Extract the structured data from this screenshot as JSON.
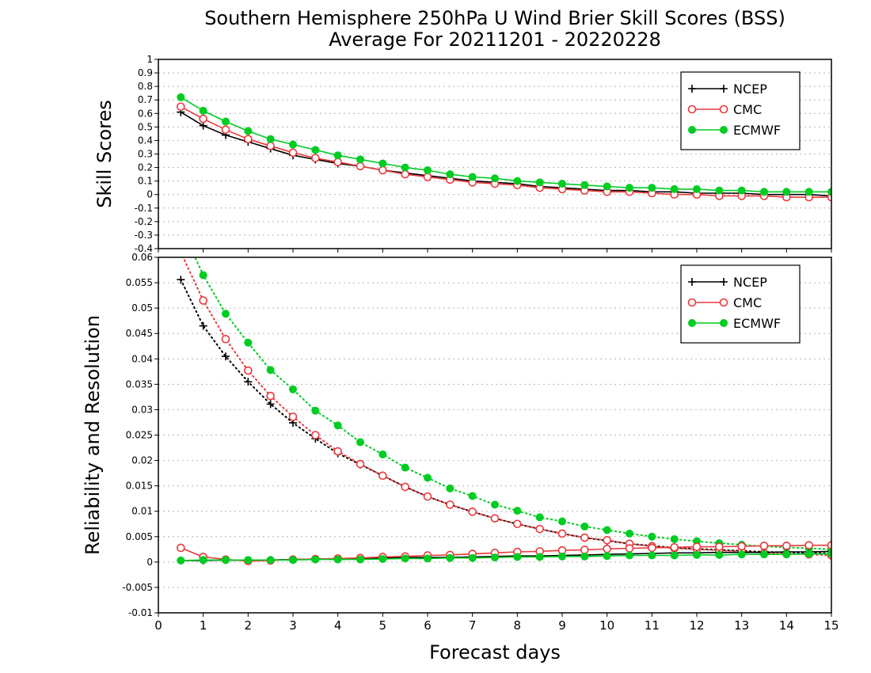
{
  "title_line1": "Southern Hemisphere 250hPa U Wind Brier Skill Scores (BSS)",
  "title_line2": "Average For 20211201 - 20220228",
  "xlabel": "Forecast days",
  "colors": {
    "NCEP": "#000000",
    "CMC": "#e8393c",
    "ECMWF": "#00cc22"
  },
  "chart_data": [
    {
      "type": "line",
      "panel": "top",
      "ylabel": "Skill Scores",
      "xlim": [
        0,
        15
      ],
      "ylim": [
        -0.4,
        1
      ],
      "xticks": [
        "0",
        "1",
        "2",
        "3",
        "4",
        "5",
        "6",
        "7",
        "8",
        "9",
        "10",
        "11",
        "12",
        "13",
        "14",
        "15"
      ],
      "yticks": [
        "-0.4",
        "-0.3",
        "-0.2",
        "-0.1",
        "0",
        "0.1",
        "0.2",
        "0.3",
        "0.4",
        "0.5",
        "0.6",
        "0.7",
        "0.8",
        "0.9",
        "1"
      ],
      "grid": true,
      "legend_position": "top-right",
      "x": [
        0.5,
        1,
        1.5,
        2,
        2.5,
        3,
        3.5,
        4,
        4.5,
        5,
        5.5,
        6,
        6.5,
        7,
        7.5,
        8,
        8.5,
        9,
        9.5,
        10,
        10.5,
        11,
        11.5,
        12,
        12.5,
        13,
        13.5,
        14,
        14.5,
        15
      ],
      "series": [
        {
          "name": "NCEP",
          "marker": "plus",
          "line": "solid",
          "values": [
            0.61,
            0.51,
            0.44,
            0.39,
            0.34,
            0.29,
            0.26,
            0.23,
            0.21,
            0.18,
            0.16,
            0.14,
            0.12,
            0.1,
            0.09,
            0.08,
            0.06,
            0.05,
            0.04,
            0.03,
            0.03,
            0.02,
            0.02,
            0.01,
            0.01,
            0.01,
            0.0,
            0.0,
            0.0,
            -0.01
          ]
        },
        {
          "name": "CMC",
          "marker": "open-circle",
          "line": "solid",
          "values": [
            0.65,
            0.56,
            0.48,
            0.41,
            0.36,
            0.31,
            0.27,
            0.24,
            0.21,
            0.18,
            0.15,
            0.13,
            0.11,
            0.09,
            0.08,
            0.07,
            0.05,
            0.04,
            0.03,
            0.02,
            0.02,
            0.01,
            0.0,
            0.0,
            -0.01,
            -0.01,
            -0.01,
            -0.02,
            -0.02,
            -0.02
          ]
        },
        {
          "name": "ECMWF",
          "marker": "filled-circle",
          "line": "solid",
          "values": [
            0.72,
            0.62,
            0.54,
            0.47,
            0.41,
            0.37,
            0.33,
            0.29,
            0.26,
            0.23,
            0.2,
            0.18,
            0.15,
            0.13,
            0.12,
            0.1,
            0.09,
            0.08,
            0.07,
            0.06,
            0.05,
            0.05,
            0.04,
            0.04,
            0.03,
            0.03,
            0.02,
            0.02,
            0.02,
            0.02
          ]
        }
      ]
    },
    {
      "type": "line",
      "panel": "bottom",
      "ylabel": "Reliability and Resolution",
      "xlim": [
        0,
        15
      ],
      "ylim": [
        -0.01,
        0.06
      ],
      "xticks": [
        "0",
        "1",
        "2",
        "3",
        "4",
        "5",
        "6",
        "7",
        "8",
        "9",
        "10",
        "11",
        "12",
        "13",
        "14",
        "15"
      ],
      "yticks": [
        "-0.01",
        "-0.005",
        "0",
        "0.005",
        "0.01",
        "0.015",
        "0.02",
        "0.025",
        "0.03",
        "0.035",
        "0.04",
        "0.045",
        "0.05",
        "0.055",
        "0.06"
      ],
      "grid": true,
      "legend_position": "top-right",
      "x": [
        0.5,
        1,
        1.5,
        2,
        2.5,
        3,
        3.5,
        4,
        4.5,
        5,
        5.5,
        6,
        6.5,
        7,
        7.5,
        8,
        8.5,
        9,
        9.5,
        10,
        10.5,
        11,
        11.5,
        12,
        12.5,
        13,
        13.5,
        14,
        14.5,
        15
      ],
      "series": [
        {
          "name": "NCEP",
          "marker": "plus",
          "line": "dotted",
          "values": [
            0.0556,
            0.0465,
            0.0405,
            0.0355,
            0.0311,
            0.0274,
            0.0243,
            0.0214,
            0.0192,
            0.017,
            0.0148,
            0.0129,
            0.0113,
            0.0099,
            0.0086,
            0.0075,
            0.0065,
            0.0056,
            0.0048,
            0.0042,
            0.0036,
            0.0032,
            0.0028,
            0.0026,
            0.0024,
            0.0022,
            0.002,
            0.0019,
            0.0018,
            0.0017
          ]
        },
        {
          "name": "CMC",
          "marker": "open-circle",
          "line": "dotted",
          "values": [
            0.061,
            0.0515,
            0.0439,
            0.0377,
            0.0327,
            0.0286,
            0.025,
            0.0218,
            0.0193,
            0.017,
            0.0148,
            0.0129,
            0.0113,
            0.0099,
            0.0086,
            0.0075,
            0.0065,
            0.0056,
            0.0048,
            0.0043,
            0.0036,
            0.0031,
            0.0027,
            0.0025,
            0.0023,
            0.0021,
            0.0018,
            0.0016,
            0.0015,
            0.0013
          ]
        },
        {
          "name": "ECMWF",
          "marker": "filled-circle",
          "line": "dotted",
          "values": [
            0.066,
            0.0565,
            0.0489,
            0.0432,
            0.0378,
            0.034,
            0.0298,
            0.0269,
            0.0236,
            0.0212,
            0.0186,
            0.0166,
            0.0145,
            0.013,
            0.0113,
            0.0101,
            0.0088,
            0.008,
            0.007,
            0.0063,
            0.0056,
            0.005,
            0.0045,
            0.0041,
            0.0037,
            0.0034,
            0.0031,
            0.0029,
            0.0027,
            0.0025
          ]
        },
        {
          "name": "NCEP",
          "marker": "plus",
          "line": "solid",
          "legend": false,
          "values": [
            0.0003,
            0.0003,
            0.0004,
            0.0003,
            0.0004,
            0.0005,
            0.0006,
            0.0006,
            0.0006,
            0.0008,
            0.0009,
            0.0009,
            0.0009,
            0.001,
            0.0011,
            0.0012,
            0.0012,
            0.0013,
            0.0014,
            0.0015,
            0.0016,
            0.0017,
            0.0018,
            0.0018,
            0.0019,
            0.0019,
            0.0019,
            0.002,
            0.002,
            0.0021
          ]
        },
        {
          "name": "CMC",
          "marker": "open-circle",
          "line": "solid",
          "legend": false,
          "values": [
            0.0028,
            0.001,
            0.0005,
            0.0002,
            0.0003,
            0.0005,
            0.0006,
            0.0007,
            0.0008,
            0.001,
            0.0011,
            0.0013,
            0.0014,
            0.0016,
            0.0018,
            0.002,
            0.0021,
            0.0023,
            0.0024,
            0.0026,
            0.0027,
            0.0028,
            0.0029,
            0.003,
            0.003,
            0.0031,
            0.0032,
            0.0032,
            0.0033,
            0.0033
          ]
        },
        {
          "name": "ECMWF",
          "marker": "filled-circle",
          "line": "solid",
          "legend": false,
          "values": [
            0.0003,
            0.0004,
            0.0004,
            0.0004,
            0.0004,
            0.0004,
            0.0005,
            0.0005,
            0.0005,
            0.0006,
            0.0007,
            0.0007,
            0.0008,
            0.0008,
            0.0009,
            0.001,
            0.001,
            0.0011,
            0.0011,
            0.0012,
            0.0013,
            0.0013,
            0.0013,
            0.0014,
            0.0014,
            0.0015,
            0.0015,
            0.0015,
            0.0016,
            0.0016
          ]
        }
      ]
    }
  ]
}
